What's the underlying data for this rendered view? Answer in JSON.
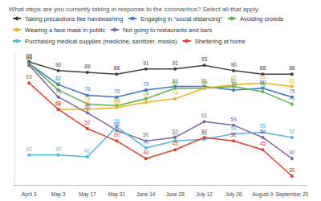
{
  "chart_data": {
    "type": "line",
    "title": "What steps are you currently taking in response to the coronavirus? Select all that apply.",
    "categories": [
      "April 3",
      "May 3",
      "May 17",
      "May 31",
      "June 14",
      "June 28",
      "July 12",
      "July 26",
      "August 9",
      "September 20"
    ],
    "series": [
      {
        "name": "Taking precautions like handwashing",
        "color": "#404040",
        "values": [
          95,
          90,
          89,
          88,
          91,
          91,
          93,
          90,
          88,
          88
        ]
      },
      {
        "name": "Engaging in “social distancing”",
        "color": "#3a78c9",
        "values": [
          94,
          82,
          76,
          75,
          79,
          81,
          81,
          79,
          80,
          75
        ]
      },
      {
        "name": "Avoiding crowds",
        "color": "#5bb04a",
        "values": [
          94,
          79,
          71,
          70,
          74,
          80,
          80,
          81,
          78,
          71
        ]
      },
      {
        "name": "Wearing a face mask in public",
        "color": "#f2b01e",
        "values": [
          null,
          68,
          68,
          69,
          72,
          74,
          80,
          82,
          83,
          81
        ]
      },
      {
        "name": "Not going to restaurants and bars",
        "color": "#8066a8",
        "values": [
          93,
          75,
          66,
          56,
          50,
          52,
          61,
          59,
          52,
          40
        ]
      },
      {
        "name": "Purchasing medical supplies (medicine, sanitizer, masks)",
        "color": "#4fb8e0",
        "values": [
          42,
          42,
          41,
          58,
          46,
          50,
          51,
          54,
          55,
          52
        ]
      },
      {
        "name": "Sheltering at home",
        "color": "#e2412f",
        "values": [
          83,
          68,
          57,
          50,
          40,
          45,
          52,
          50,
          45,
          30
        ]
      }
    ],
    "ylim": [
      25,
      100
    ],
    "yticks": [],
    "grid": false,
    "legend": "top",
    "data_labels": true,
    "tick_labels": "x",
    "marker": "circle"
  }
}
